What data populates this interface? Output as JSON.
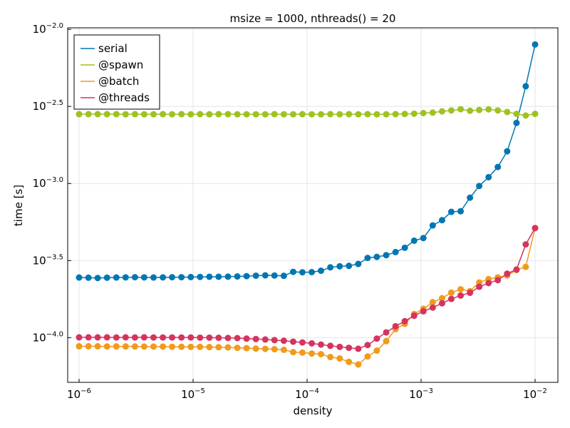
{
  "chart_data": {
    "type": "line",
    "title": "msize = 1000, nthreads() = 20",
    "xlabel": "density",
    "ylabel": "time [s]",
    "xscale": "log10",
    "yscale": "log10",
    "xlim_log10": [
      -6.1,
      -1.8
    ],
    "ylim_log10": [
      -4.29,
      -1.99
    ],
    "grid": true,
    "legend_position": "top-left",
    "x_ticks": [
      {
        "log": -6,
        "base": "10",
        "exp": "−6"
      },
      {
        "log": -5,
        "base": "10",
        "exp": "−5"
      },
      {
        "log": -4,
        "base": "10",
        "exp": "−4"
      },
      {
        "log": -3,
        "base": "10",
        "exp": "−3"
      },
      {
        "log": -2,
        "base": "10",
        "exp": "−2"
      }
    ],
    "y_ticks": [
      {
        "log": -2.0,
        "base": "10",
        "exp": "−2.0"
      },
      {
        "log": -2.5,
        "base": "10",
        "exp": "−2.5"
      },
      {
        "log": -3.0,
        "base": "10",
        "exp": "−3.0"
      },
      {
        "log": -3.5,
        "base": "10",
        "exp": "−3.5"
      },
      {
        "log": -4.0,
        "base": "10",
        "exp": "−4.0"
      }
    ],
    "x_log10": [
      -6.0,
      -5.918,
      -5.837,
      -5.755,
      -5.673,
      -5.592,
      -5.51,
      -5.429,
      -5.347,
      -5.265,
      -5.184,
      -5.102,
      -5.02,
      -4.939,
      -4.857,
      -4.776,
      -4.694,
      -4.612,
      -4.531,
      -4.449,
      -4.367,
      -4.286,
      -4.204,
      -4.122,
      -4.041,
      -3.959,
      -3.878,
      -3.796,
      -3.714,
      -3.633,
      -3.551,
      -3.469,
      -3.388,
      -3.306,
      -3.224,
      -3.143,
      -3.061,
      -2.98,
      -2.898,
      -2.816,
      -2.735,
      -2.653,
      -2.571,
      -2.49,
      -2.408,
      -2.327,
      -2.245,
      -2.163,
      -2.082,
      -2.0
    ],
    "series": [
      {
        "name": "serial",
        "color": "#0077b3",
        "log10_values": [
          -3.61,
          -3.611,
          -3.613,
          -3.611,
          -3.61,
          -3.609,
          -3.608,
          -3.609,
          -3.61,
          -3.609,
          -3.608,
          -3.608,
          -3.607,
          -3.606,
          -3.605,
          -3.605,
          -3.604,
          -3.603,
          -3.601,
          -3.598,
          -3.596,
          -3.597,
          -3.599,
          -3.573,
          -3.576,
          -3.575,
          -3.566,
          -3.544,
          -3.537,
          -3.534,
          -3.522,
          -3.483,
          -3.476,
          -3.465,
          -3.445,
          -3.417,
          -3.371,
          -3.354,
          -3.272,
          -3.238,
          -3.184,
          -3.18,
          -3.092,
          -3.016,
          -2.959,
          -2.893,
          -2.791,
          -2.607,
          -2.369,
          -2.098
        ]
      },
      {
        "name": "@spawn",
        "color": "#9fc21f",
        "log10_values": [
          -2.55,
          -2.55,
          -2.55,
          -2.55,
          -2.55,
          -2.551,
          -2.55,
          -2.551,
          -2.551,
          -2.55,
          -2.551,
          -2.55,
          -2.551,
          -2.55,
          -2.551,
          -2.55,
          -2.55,
          -2.551,
          -2.551,
          -2.551,
          -2.551,
          -2.55,
          -2.551,
          -2.551,
          -2.55,
          -2.551,
          -2.551,
          -2.55,
          -2.551,
          -2.55,
          -2.551,
          -2.55,
          -2.551,
          -2.551,
          -2.55,
          -2.549,
          -2.547,
          -2.543,
          -2.54,
          -2.532,
          -2.526,
          -2.518,
          -2.528,
          -2.523,
          -2.519,
          -2.526,
          -2.536,
          -2.548,
          -2.559,
          -2.548
        ]
      },
      {
        "name": "@batch",
        "color": "#f29a1b",
        "log10_values": [
          -4.056,
          -4.056,
          -4.056,
          -4.057,
          -4.057,
          -4.057,
          -4.057,
          -4.058,
          -4.058,
          -4.058,
          -4.059,
          -4.059,
          -4.06,
          -4.06,
          -4.061,
          -4.062,
          -4.063,
          -4.066,
          -4.068,
          -4.071,
          -4.073,
          -4.075,
          -4.079,
          -4.094,
          -4.097,
          -4.103,
          -4.107,
          -4.126,
          -4.135,
          -4.157,
          -4.174,
          -4.122,
          -4.084,
          -4.023,
          -3.945,
          -3.91,
          -3.847,
          -3.813,
          -3.77,
          -3.744,
          -3.708,
          -3.686,
          -3.698,
          -3.642,
          -3.62,
          -3.609,
          -3.597,
          -3.561,
          -3.541,
          -3.289
        ]
      },
      {
        "name": "@threads",
        "color": "#d6335f",
        "log10_values": [
          -3.998,
          -3.998,
          -3.998,
          -3.998,
          -3.999,
          -3.998,
          -3.999,
          -3.998,
          -3.999,
          -3.999,
          -3.999,
          -3.999,
          -3.999,
          -4.0,
          -4.0,
          -4.001,
          -4.002,
          -4.003,
          -4.006,
          -4.009,
          -4.012,
          -4.016,
          -4.02,
          -4.026,
          -4.031,
          -4.037,
          -4.045,
          -4.053,
          -4.06,
          -4.066,
          -4.072,
          -4.048,
          -4.006,
          -3.966,
          -3.926,
          -3.893,
          -3.858,
          -3.829,
          -3.805,
          -3.777,
          -3.749,
          -3.727,
          -3.709,
          -3.67,
          -3.646,
          -3.627,
          -3.585,
          -3.558,
          -3.395,
          -3.289
        ]
      }
    ]
  }
}
